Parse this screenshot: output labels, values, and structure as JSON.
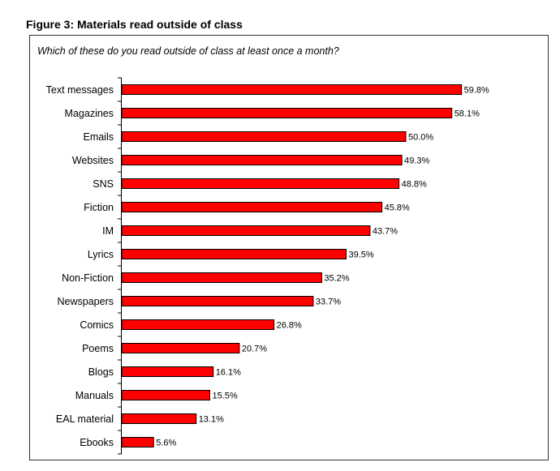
{
  "chart_data": {
    "type": "bar",
    "orientation": "horizontal",
    "title": "Figure 3: Materials read outside of class",
    "subtitle": "Which of these do you read outside of class at least once a month?",
    "categories": [
      "Text messages",
      "Magazines",
      "Emails",
      "Websites",
      "SNS",
      "Fiction",
      "IM",
      "Lyrics",
      "Non-Fiction",
      "Newspapers",
      "Comics",
      "Poems",
      "Blogs",
      "Manuals",
      "EAL material",
      "Ebooks"
    ],
    "values": [
      59.8,
      58.1,
      50.0,
      49.3,
      48.8,
      45.8,
      43.7,
      39.5,
      35.2,
      33.7,
      26.8,
      20.7,
      16.1,
      15.5,
      13.1,
      5.6
    ],
    "labels": [
      "59.8%",
      "58.1%",
      "50.0%",
      "49.3%",
      "48.8%",
      "45.8%",
      "43.7%",
      "39.5%",
      "35.2%",
      "33.7%",
      "26.8%",
      "20.7%",
      "16.1%",
      "15.5%",
      "13.1%",
      "5.6%"
    ],
    "bar_color": "#ff0000",
    "grid": false,
    "legend": "none"
  }
}
